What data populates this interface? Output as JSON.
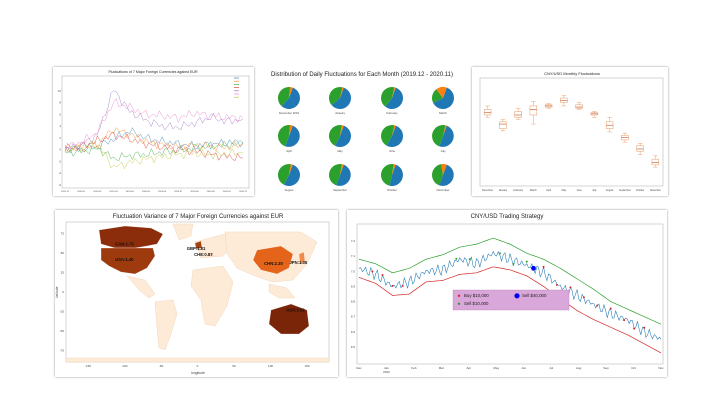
{
  "colors": {
    "frame": "#cccccc",
    "pie_blue": "#1f77b4",
    "pie_green": "#2ca02c",
    "pie_orange": "#ff7f0e",
    "box": "#e8a070",
    "map_land": "#fdebd8",
    "map_dark": "#8b2c0a",
    "map_mid": "#e4641a",
    "legend_bg": "#d9a7d9",
    "price": "#1f77b4",
    "upper": "#2ca02c",
    "lower": "#d62728"
  },
  "chart_data": [
    {
      "type": "line",
      "title": "Fluctuations of 7 Major Foreign Currencies against EUR",
      "legend_position": "top-right",
      "ylim": [
        -6,
        12
      ],
      "yticks": [
        "10",
        "8",
        "6",
        "4",
        "2",
        "0",
        "-2",
        "-4",
        "-6"
      ],
      "xticks": [
        "2019-12",
        "2020-01",
        "2020-02",
        "2020-03",
        "2020-04",
        "2020-05",
        "2020-06",
        "2020-07",
        "2020-08",
        "2020-09",
        "2020-10",
        "2020-11"
      ],
      "series": [
        {
          "color": "#1f77b4",
          "values": [
            0.3,
            0.0,
            0.5,
            1.8,
            3.2,
            2.0,
            1.4,
            1.0,
            0.6,
            0.9,
            1.2,
            1.3
          ]
        },
        {
          "color": "#ff7f0e",
          "values": [
            0.0,
            0.2,
            0.8,
            3.5,
            2.6,
            1.4,
            0.8,
            0.5,
            0.7,
            0.6,
            0.4,
            0.8
          ]
        },
        {
          "color": "#2ca02c",
          "values": [
            -0.5,
            -0.3,
            0.2,
            -1.5,
            -1.0,
            -0.8,
            -0.4,
            -0.2,
            0.3,
            0.6,
            0.8,
            1.0
          ]
        },
        {
          "color": "#d62728",
          "values": [
            0.2,
            0.6,
            1.5,
            2.5,
            1.8,
            1.0,
            0.5,
            0.1,
            -0.3,
            -0.8,
            -1.2,
            -1.4
          ]
        },
        {
          "color": "#9467bd",
          "values": [
            0.0,
            0.8,
            2.5,
            10.2,
            6.5,
            5.0,
            4.0,
            3.8,
            4.5,
            5.5,
            4.8,
            5.2
          ]
        },
        {
          "color": "#e377c2",
          "values": [
            0.4,
            1.2,
            3.0,
            8.0,
            7.2,
            6.0,
            5.8,
            5.4,
            6.2,
            5.8,
            5.5,
            5.4
          ]
        },
        {
          "color": "#bcbd22",
          "values": [
            0.1,
            0.5,
            1.0,
            -3.0,
            -2.2,
            -1.6,
            -1.2,
            -0.8,
            -0.6,
            -0.9,
            -0.7,
            -0.5
          ]
        }
      ]
    },
    {
      "type": "pie",
      "title": "Distribution of Daily Fluctuations for Each Month (2019.12 - 2020.11)",
      "pies": [
        {
          "label": "December 2019",
          "slices": [
            56,
            40,
            4
          ]
        },
        {
          "label": "January",
          "slices": [
            58,
            40,
            2
          ]
        },
        {
          "label": "February",
          "slices": [
            55,
            43,
            2
          ]
        },
        {
          "label": "March",
          "slices": [
            62,
            22,
            16
          ]
        },
        {
          "label": "April",
          "slices": [
            50,
            46,
            4
          ]
        },
        {
          "label": "May",
          "slices": [
            52,
            45,
            3
          ]
        },
        {
          "label": "June",
          "slices": [
            53,
            45,
            2
          ]
        },
        {
          "label": "July",
          "slices": [
            50,
            48,
            2
          ]
        },
        {
          "label": "August",
          "slices": [
            52,
            45,
            3
          ]
        },
        {
          "label": "September",
          "slices": [
            50,
            47,
            3
          ]
        },
        {
          "label": "October",
          "slices": [
            48,
            49,
            3
          ]
        },
        {
          "label": "November",
          "slices": [
            50,
            42,
            8
          ]
        }
      ]
    },
    {
      "type": "box",
      "title": "CNY/USD Monthly Fluctuations",
      "ylim": [
        6.4,
        7.3
      ],
      "categories": [
        "December",
        "January",
        "February",
        "March",
        "April",
        "May",
        "June",
        "July",
        "August",
        "September",
        "October",
        "November"
      ],
      "boxes": [
        {
          "min": 6.98,
          "q1": 7.0,
          "med": 7.02,
          "q3": 7.05,
          "max": 7.08
        },
        {
          "min": 6.86,
          "q1": 6.88,
          "med": 6.92,
          "q3": 6.94,
          "max": 6.96
        },
        {
          "min": 6.96,
          "q1": 6.98,
          "med": 7.0,
          "q3": 7.03,
          "max": 7.06
        },
        {
          "min": 6.92,
          "q1": 7.0,
          "med": 7.05,
          "q3": 7.08,
          "max": 7.12
        },
        {
          "min": 7.06,
          "q1": 7.07,
          "med": 7.08,
          "q3": 7.09,
          "max": 7.1
        },
        {
          "min": 7.08,
          "q1": 7.11,
          "med": 7.13,
          "q3": 7.15,
          "max": 7.17
        },
        {
          "min": 7.05,
          "q1": 7.06,
          "med": 7.07,
          "q3": 7.09,
          "max": 7.11
        },
        {
          "min": 6.98,
          "q1": 7.0,
          "med": 7.01,
          "q3": 7.02,
          "max": 7.03
        },
        {
          "min": 6.85,
          "q1": 6.88,
          "med": 6.91,
          "q3": 6.94,
          "max": 6.98
        },
        {
          "min": 6.76,
          "q1": 6.78,
          "med": 6.8,
          "q3": 6.82,
          "max": 6.84
        },
        {
          "min": 6.65,
          "q1": 6.68,
          "med": 6.7,
          "q3": 6.73,
          "max": 6.75
        },
        {
          "min": 6.54,
          "q1": 6.56,
          "med": 6.58,
          "q3": 6.61,
          "max": 6.64
        }
      ]
    },
    {
      "type": "map",
      "title": "Fluctuation Variance of 7 Major Foreign Currencies against EUR",
      "xlabel": "longitude",
      "ylabel": "latitude",
      "xticks": [
        "-150",
        "-100",
        "-50",
        "0",
        "50",
        "100",
        "150"
      ],
      "yticks": [
        "75",
        "50",
        "25",
        "0",
        "-25",
        "-50",
        "-75"
      ],
      "annotations": [
        {
          "text": "CAN:1.73",
          "lon": -100,
          "lat": 60
        },
        {
          "text": "USA:1.40",
          "lon": -100,
          "lat": 40
        },
        {
          "text": "GBP:1.81",
          "lon": -2,
          "lat": 54
        },
        {
          "text": "CHE:0.87",
          "lon": 8,
          "lat": 46
        },
        {
          "text": "CHN:2.30",
          "lon": 104,
          "lat": 35
        },
        {
          "text": "JPN:1.35",
          "lon": 138,
          "lat": 36
        },
        {
          "text": "AUS:3.52",
          "lon": 134,
          "lat": -25
        }
      ]
    },
    {
      "type": "line",
      "title": "CNY/USD Trading Strategy",
      "legend_position": "center",
      "ylim": [
        6.4,
        7.3
      ],
      "yticks": [
        "7.2",
        "7.1",
        "7.0",
        "6.9",
        "6.8",
        "6.7",
        "6.6",
        "6.5"
      ],
      "xticks": [
        "Dec",
        "Jan\n2020",
        "Feb",
        "Mar",
        "Apr",
        "May",
        "Jun",
        "Jul",
        "Aug",
        "Sep",
        "Oct",
        "Nov"
      ],
      "series": [
        {
          "name": "price",
          "values": [
            7.02,
            6.98,
            6.9,
            6.93,
            7.0,
            7.01,
            7.08,
            7.05,
            7.12,
            7.08,
            7.04,
            6.99,
            6.9,
            6.84,
            6.78,
            6.72,
            6.68,
            6.6,
            6.55
          ]
        },
        {
          "name": "upper",
          "values": [
            7.08,
            7.05,
            6.99,
            7.02,
            7.08,
            7.11,
            7.16,
            7.18,
            7.22,
            7.18,
            7.12,
            7.08,
            7.02,
            6.95,
            6.88,
            6.8,
            6.75,
            6.7,
            6.65
          ]
        },
        {
          "name": "lower",
          "values": [
            6.96,
            6.92,
            6.84,
            6.85,
            6.93,
            6.94,
            6.98,
            6.99,
            7.03,
            7.01,
            6.97,
            6.9,
            6.82,
            6.74,
            6.68,
            6.63,
            6.58,
            6.52,
            6.46
          ]
        }
      ],
      "legend": [
        {
          "label": "Buy $10,000",
          "color": "#d62728",
          "marker": "small"
        },
        {
          "label": "Sell $40,000",
          "color": "#0000ff",
          "marker": "large"
        },
        {
          "label": "Sell $10,000",
          "color": "#2ca02c",
          "marker": "small"
        }
      ]
    }
  ]
}
